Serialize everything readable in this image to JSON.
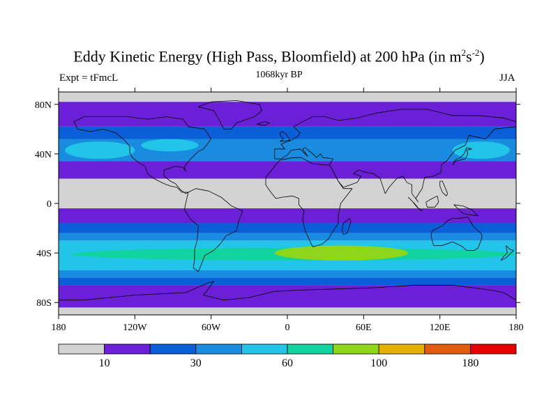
{
  "title": {
    "main": "Eddy Kinetic Energy (High Pass, Bloomfield) at 200 hPa (in m",
    "sup1": "2",
    "mid": "s",
    "sup2": "-2",
    "end": ")"
  },
  "subtitle": "1068kyr BP",
  "left_label": "Expt = tFmcL",
  "right_label": "JJA",
  "map": {
    "projection": "equirectangular",
    "lon_range": [
      -180,
      180
    ],
    "lat_range": [
      -90,
      90
    ],
    "lon_ticks": [
      {
        "value": -180,
        "label": "180"
      },
      {
        "value": -120,
        "label": "120W"
      },
      {
        "value": -60,
        "label": "60W"
      },
      {
        "value": 0,
        "label": "0"
      },
      {
        "value": 60,
        "label": "60E"
      },
      {
        "value": 120,
        "label": "120E"
      },
      {
        "value": 180,
        "label": "180"
      }
    ],
    "lat_ticks": [
      {
        "value": 80,
        "label": "80N"
      },
      {
        "value": 40,
        "label": "40N"
      },
      {
        "value": 0,
        "label": "0"
      },
      {
        "value": -40,
        "label": "40S"
      },
      {
        "value": -80,
        "label": "80S"
      }
    ],
    "background_color": "#d3d3d3",
    "bands": [
      {
        "lat_top": 82,
        "lat_bottom": 62,
        "color": "#6b1fd6"
      },
      {
        "lat_top": 62,
        "lat_bottom": 52,
        "color": "#0a5fd9"
      },
      {
        "lat_top": 52,
        "lat_bottom": 34,
        "color": "#1a8ce0"
      },
      {
        "lat_top": 34,
        "lat_bottom": 20,
        "color": "#6b1fd6"
      },
      {
        "lat_top": -4,
        "lat_bottom": -16,
        "color": "#6b1fd6"
      },
      {
        "lat_top": -16,
        "lat_bottom": -24,
        "color": "#0a5fd9"
      },
      {
        "lat_top": -24,
        "lat_bottom": -30,
        "color": "#1a8ce0"
      },
      {
        "lat_top": -30,
        "lat_bottom": -54,
        "color": "#22c5e8"
      },
      {
        "lat_top": -54,
        "lat_bottom": -60,
        "color": "#1a8ce0"
      },
      {
        "lat_top": -60,
        "lat_bottom": -66,
        "color": "#0a5fd9"
      },
      {
        "lat_top": -66,
        "lat_bottom": -84,
        "color": "#6b1fd6"
      }
    ],
    "patches": [
      {
        "lon": [
          -175,
          -120
        ],
        "lat": [
          50,
          36
        ],
        "color": "#22c5e8"
      },
      {
        "lon": [
          -115,
          -70
        ],
        "lat": [
          52,
          42
        ],
        "color": "#22c5e8"
      },
      {
        "lon": [
          130,
          175
        ],
        "lat": [
          50,
          36
        ],
        "color": "#22c5e8"
      },
      {
        "lon": [
          -170,
          180
        ],
        "lat": [
          -36,
          -46
        ],
        "color": "#10d3a0"
      },
      {
        "lon": [
          -10,
          95
        ],
        "lat": [
          -34,
          -46
        ],
        "color": "#8ed61a"
      }
    ]
  },
  "colorbar": {
    "colors": [
      "#d3d3d3",
      "#6b1fd6",
      "#0a5fd9",
      "#1a8ce0",
      "#22c5e8",
      "#10d3a0",
      "#8ed61a",
      "#e5b100",
      "#e25c10",
      "#e60000"
    ],
    "labels": [
      {
        "boundary": 1,
        "text": "10"
      },
      {
        "boundary": 3,
        "text": "30"
      },
      {
        "boundary": 5,
        "text": "60"
      },
      {
        "boundary": 7,
        "text": "100"
      },
      {
        "boundary": 9,
        "text": "180"
      }
    ]
  }
}
